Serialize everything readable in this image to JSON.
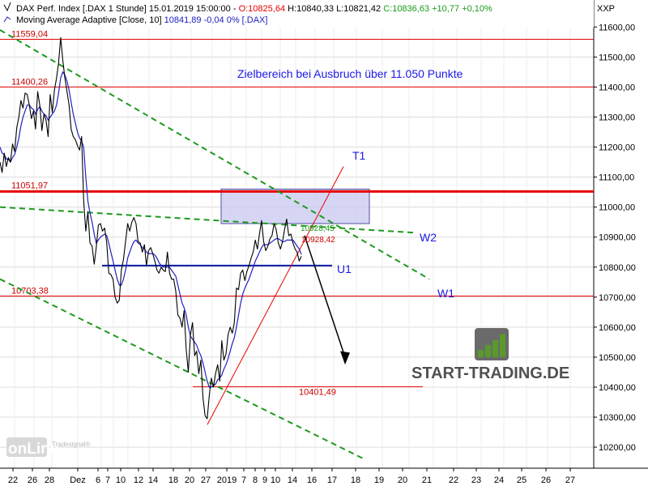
{
  "header": {
    "line1": "DAX Perf. Index [.DAX  1 Stunde] 15.01.2019 15:00:00 -",
    "ohlc_o": "O:10825,64",
    "ohlc_h": "H:10840,33",
    "ohlc_l": "L:10821,42",
    "ohlc_c": "C:10836,63 +10,77 +0,10%",
    "line2": "Moving Average Adaptive [Close, 10]",
    "ma_value": "10841,89 -0,04 0% [.DAX]"
  },
  "axis_unit": "XXP",
  "watermark": {
    "brand": "onLine",
    "sub": "Tradesignal®"
  },
  "logo": {
    "text": "START-TRADING.DE",
    "bar_heights": [
      0.3,
      0.5,
      0.7,
      0.95
    ]
  },
  "colors": {
    "background": "#ffffff",
    "grid": "#dcdcdc",
    "price": "#000000",
    "moving_average": "#2020c0",
    "resistance": "#e60000",
    "support_level": "#0a1aa8",
    "trend_dashed": "#1e9a1e",
    "target_zone_fill": "#c8c8f0",
    "target_zone_stroke": "#5050a0",
    "annotation_blue": "#1a1ae6",
    "level_label_red": "#cc0000",
    "logo_green": "#5a9a2a",
    "logo_gray": "#505050"
  },
  "chart_data": {
    "type": "line",
    "title": "DAX Perf. Index [.DAX  1 Stunde]",
    "ylim": [
      10130,
      11690
    ],
    "y_ticks": [
      10200,
      10300,
      10400,
      10500,
      10600,
      10700,
      10800,
      10900,
      11000,
      11100,
      11200,
      11300,
      11400,
      11500,
      11600
    ],
    "y_tick_labels": [
      "10200,00",
      "10300,00",
      "10400,00",
      "10500,00",
      "10600,00",
      "10700,00",
      "10800,00",
      "10900,00",
      "11000,00",
      "11100,00",
      "11200,00",
      "11300,00",
      "11400,00",
      "11500,00",
      "11600,00"
    ],
    "x_tick_labels": [
      "22",
      "26",
      "28",
      "Dez",
      "6",
      "7",
      "10",
      "12",
      "14",
      "18",
      "20",
      "27",
      "2019",
      "7",
      "8",
      "9",
      "10",
      "14",
      "16",
      "17",
      "18",
      "19",
      "20",
      "21",
      "22",
      "23",
      "24",
      "25",
      "26",
      "27"
    ],
    "grid": true,
    "series": [
      {
        "name": "DAX Perf. Index",
        "values": [
          11150,
          11115,
          11180,
          11135,
          11165,
          11150,
          11210,
          11185,
          11265,
          11300,
          11355,
          11330,
          11380,
          11375,
          11340,
          11295,
          11320,
          11260,
          11385,
          11340,
          11255,
          11310,
          11290,
          11235,
          11375,
          11315,
          11390,
          11430,
          11480,
          11565,
          11490,
          11430,
          11385,
          11340,
          11260,
          11235,
          11225,
          11205,
          11190,
          11235,
          11020,
          10920,
          10985,
          10880,
          10870,
          10810,
          10865,
          10940,
          10945,
          10920,
          10930,
          10880,
          10780,
          10775,
          10760,
          10700,
          10680,
          10690,
          10790,
          10825,
          10885,
          10945,
          10920,
          10950,
          10965,
          10945,
          10885,
          10880,
          10850,
          10875,
          10805,
          10855,
          10865,
          10845,
          10820,
          10790,
          10780,
          10800,
          10790,
          10785,
          10850,
          10780,
          10760,
          10760,
          10720,
          10640,
          10630,
          10600,
          10655,
          10525,
          10450,
          10575,
          10615,
          10505,
          10520,
          10445,
          10490,
          10365,
          10305,
          10295,
          10370,
          10430,
          10400,
          10445,
          10475,
          10420,
          10555,
          10490,
          10510,
          10575,
          10600,
          10580,
          10615,
          10730,
          10725,
          10780,
          10790,
          10755,
          10785,
          10805,
          10830,
          10850,
          10890,
          10860,
          10910,
          10955,
          10885,
          10855,
          10870,
          10895,
          10905,
          10945,
          10925,
          10880,
          10860,
          10885,
          10925,
          10960,
          10905,
          10910,
          10880,
          10860,
          10850,
          10820,
          10836
        ]
      },
      {
        "name": "Moving Average Adaptive [Close, 10]",
        "values": [
          11200,
          11180,
          11175,
          11160,
          11160,
          11150,
          11165,
          11175,
          11200,
          11230,
          11270,
          11300,
          11320,
          11340,
          11340,
          11330,
          11325,
          11310,
          11325,
          11335,
          11320,
          11310,
          11305,
          11290,
          11300,
          11310,
          11320,
          11340,
          11380,
          11430,
          11450,
          11440,
          11420,
          11390,
          11350,
          11310,
          11280,
          11250,
          11230,
          11220,
          11200,
          11100,
          11020,
          10980,
          10950,
          10910,
          10880,
          10890,
          10900,
          10905,
          10910,
          10905,
          10880,
          10850,
          10820,
          10790,
          10760,
          10740,
          10740,
          10760,
          10790,
          10830,
          10850,
          10870,
          10885,
          10890,
          10880,
          10875,
          10865,
          10860,
          10850,
          10845,
          10845,
          10845,
          10840,
          10830,
          10815,
          10805,
          10800,
          10800,
          10800,
          10800,
          10790,
          10780,
          10770,
          10740,
          10710,
          10680,
          10665,
          10640,
          10600,
          10570,
          10560,
          10550,
          10540,
          10520,
          10505,
          10480,
          10450,
          10420,
          10400,
          10400,
          10405,
          10410,
          10425,
          10430,
          10440,
          10460,
          10475,
          10495,
          10520,
          10545,
          10565,
          10600,
          10640,
          10680,
          10710,
          10730,
          10745,
          10760,
          10780,
          10800,
          10820,
          10835,
          10850,
          10865,
          10875,
          10875,
          10875,
          10880,
          10885,
          10890,
          10895,
          10895,
          10890,
          10885,
          10885,
          10890,
          10890,
          10890,
          10890,
          10880,
          10870,
          10860,
          10842
        ]
      }
    ],
    "levels": [
      {
        "label": "11559,04",
        "value": 11559.04
      },
      {
        "label": "11400,26",
        "value": 11400.26
      },
      {
        "label": "11051,97",
        "value": 11051.97
      },
      {
        "label": "10703,38",
        "value": 10703.38
      },
      {
        "label": "10401,49",
        "value": 10401.49
      }
    ],
    "annotations": {
      "main_text": "Zielbereich bei Ausbruch über 11.050 Punkte",
      "t1": "T1",
      "w1": "W1",
      "w2": "W2",
      "u1": "U1",
      "price_label_a": "10928,45",
      "price_label_b": "10928,42"
    }
  }
}
